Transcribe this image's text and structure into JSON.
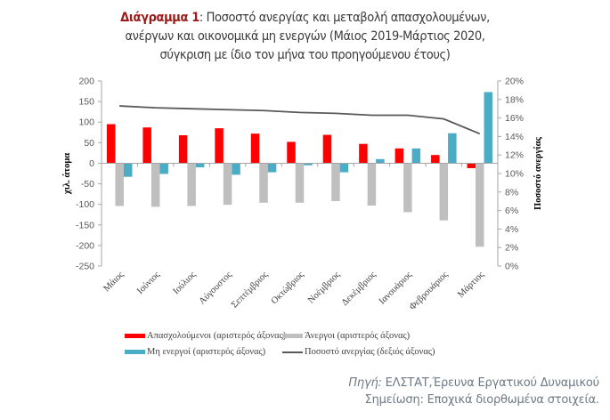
{
  "title": {
    "lead": "Διάγραμμα 1",
    "line1": ": Ποσοστό ανεργίας και μεταβολή απασχολουμένων,",
    "line2": "ανέργων και οικονομικά μη ενεργών (Μάιος 2019-Μάρτιος 2020,",
    "line3": "σύγκριση με ίδιο τον μήνα του προηγούμενου έτους)"
  },
  "colors": {
    "employed": "#ff0000",
    "unemployed": "#bfbfbf",
    "inactive": "#4bacc6",
    "rate_line": "#595959",
    "title_lead": "#9b1b1b"
  },
  "chart_data": {
    "type": "bar+line",
    "categories": [
      "Μάιος",
      "Ιούνιος",
      "Ιούλιος",
      "Αύγουστος",
      "Σεπτέμβριος",
      "Οκτώβριος",
      "Νοέμβριος",
      "Δεκέμβριος",
      "Ιανουάριος",
      "Φεβρουάριος",
      "Μάρτιος"
    ],
    "series": [
      {
        "name": "Απασχολούμενοι (αριστερός άξονας)",
        "axis": "left",
        "kind": "bar",
        "values": [
          95,
          87,
          68,
          85,
          72,
          52,
          69,
          47,
          36,
          20,
          -12
        ]
      },
      {
        "name": "Άνεργοι (αριστερός άξονας)",
        "axis": "left",
        "kind": "bar",
        "values": [
          -104,
          -106,
          -104,
          -101,
          -96,
          -96,
          -92,
          -103,
          -119,
          -139,
          -203
        ]
      },
      {
        "name": "Μη ενεργοί (αριστερός άξονας)",
        "axis": "left",
        "kind": "bar",
        "values": [
          -33,
          -26,
          -10,
          -28,
          -22,
          -5,
          -22,
          10,
          36,
          73,
          173
        ]
      },
      {
        "name": "Ποσοστό ανεργίας (δεξιός άξονας)",
        "axis": "right",
        "kind": "line",
        "values": [
          17.3,
          17.1,
          17.0,
          16.9,
          16.8,
          16.6,
          16.5,
          16.3,
          16.3,
          15.9,
          14.3
        ]
      }
    ],
    "ylabel": "χιλ. άτομα",
    "y2label": "Ποσοστό ανεργίας",
    "ylim": [
      -250,
      200
    ],
    "y2lim": [
      0,
      20
    ],
    "yticks": [
      "200",
      "150",
      "100",
      "50",
      "0",
      "-50",
      "-100",
      "-150",
      "-200",
      "-250"
    ],
    "yticks_values": [
      200,
      150,
      100,
      50,
      0,
      -50,
      -100,
      -150,
      -200,
      -250
    ],
    "y2ticks": [
      "20%",
      "18%",
      "16%",
      "14%",
      "12%",
      "10%",
      "8%",
      "6%",
      "4%",
      "2%",
      "0%"
    ],
    "y2ticks_values": [
      20,
      18,
      16,
      14,
      12,
      10,
      8,
      6,
      4,
      2,
      0
    ],
    "legend_position": "bottom",
    "grid": false
  },
  "source": {
    "lead": "Πηγή:",
    "text": " ΕΛΣΤΑΤ,Έρευνα Εργατικού Δυναμικού",
    "note": "Σημείωση: Εποχικά διορθωμένα στοιχεία."
  }
}
